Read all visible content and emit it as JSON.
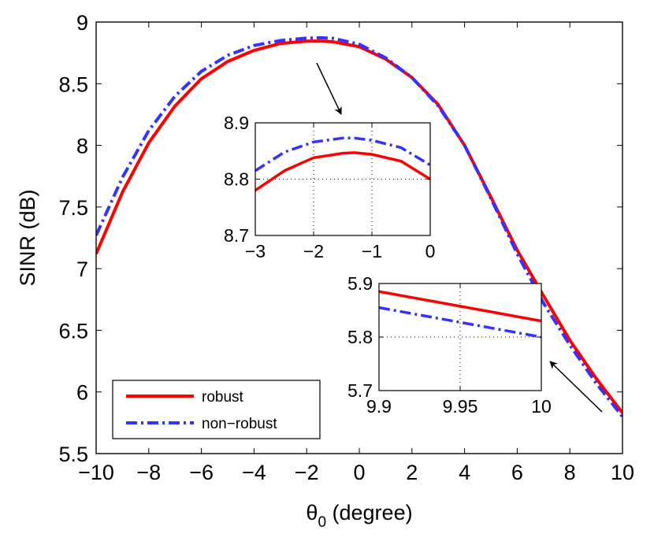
{
  "chart_data": {
    "type": "line",
    "xlabel_symbol": "θ",
    "xlabel_subscript": "0",
    "xlabel_rest": " (degree)",
    "ylabel": "SINR (dB)",
    "xlim": [
      -10,
      10
    ],
    "ylim": [
      5.5,
      9
    ],
    "xticks": [
      -10,
      -8,
      -6,
      -4,
      -2,
      0,
      2,
      4,
      6,
      8,
      10
    ],
    "xtick_labels": [
      "−10",
      "−8",
      "−6",
      "−4",
      "−2",
      "0",
      "2",
      "4",
      "6",
      "8",
      "10"
    ],
    "yticks": [
      5.5,
      6,
      6.5,
      7,
      7.5,
      8,
      8.5,
      9
    ],
    "ytick_labels": [
      "5.5",
      "6",
      "6.5",
      "7",
      "7.5",
      "8",
      "8.5",
      "9"
    ],
    "series": [
      {
        "name": "robust",
        "color": "#ff0000",
        "style": "solid",
        "x": [
          -10,
          -9,
          -8,
          -7,
          -6,
          -5,
          -4,
          -3,
          -2,
          -1.5,
          -1,
          0,
          1,
          2,
          3,
          4,
          5,
          6,
          7,
          8,
          9,
          10
        ],
        "y": [
          7.12,
          7.62,
          8.02,
          8.32,
          8.54,
          8.68,
          8.77,
          8.826,
          8.845,
          8.846,
          8.84,
          8.8,
          8.7,
          8.55,
          8.33,
          8.0,
          7.58,
          7.15,
          6.78,
          6.42,
          6.11,
          5.83
        ]
      },
      {
        "name": "non−robust",
        "color": "#3333ff",
        "style": "dashdot",
        "x": [
          -10,
          -9,
          -8,
          -7,
          -6,
          -5,
          -4,
          -3,
          -2,
          -1.5,
          -1,
          0,
          1,
          2,
          3,
          4,
          5,
          6,
          7,
          8,
          9,
          10
        ],
        "y": [
          7.27,
          7.74,
          8.12,
          8.4,
          8.6,
          8.73,
          8.81,
          8.85,
          8.87,
          8.873,
          8.868,
          8.82,
          8.71,
          8.55,
          8.32,
          8.0,
          7.57,
          7.12,
          6.72,
          6.38,
          6.07,
          5.8
        ]
      }
    ],
    "legend": {
      "position": "bottom-left",
      "entries": [
        "robust",
        "non−robust"
      ]
    },
    "insets": [
      {
        "name": "inset-upper",
        "xlim": [
          -3,
          0
        ],
        "ylim": [
          8.7,
          8.9
        ],
        "xticks": [
          -3,
          -2,
          -1,
          0
        ],
        "xtick_labels": [
          "−3",
          "−2",
          "−1",
          "0"
        ],
        "yticks": [
          8.7,
          8.8,
          8.9
        ],
        "ytick_labels": [
          "8.7",
          "8.8",
          "8.9"
        ],
        "grid_x": [
          -2,
          -1
        ],
        "grid_y": [
          8.8
        ],
        "series": [
          {
            "name": "robust",
            "x": [
              -3,
              -2.5,
              -2,
              -1.5,
              -1.3,
              -1,
              -0.5,
              0
            ],
            "y": [
              8.78,
              8.815,
              8.838,
              8.846,
              8.847,
              8.844,
              8.832,
              8.8
            ]
          },
          {
            "name": "non−robust",
            "x": [
              -3,
              -2.5,
              -2,
              -1.5,
              -1.3,
              -1,
              -0.5,
              0
            ],
            "y": [
              8.815,
              8.848,
              8.866,
              8.873,
              8.873,
              8.869,
              8.856,
              8.825
            ]
          }
        ]
      },
      {
        "name": "inset-lower",
        "xlim": [
          9.9,
          10
        ],
        "ylim": [
          5.7,
          5.9
        ],
        "xticks": [
          9.9,
          9.95,
          10
        ],
        "xtick_labels": [
          "9.9",
          "9.95",
          "10"
        ],
        "yticks": [
          5.7,
          5.8,
          5.9
        ],
        "ytick_labels": [
          "5.7",
          "5.8",
          "5.9"
        ],
        "grid_x": [
          9.95
        ],
        "grid_y": [
          5.8
        ],
        "series": [
          {
            "name": "robust",
            "x": [
              9.9,
              10
            ],
            "y": [
              5.885,
              5.83
            ]
          },
          {
            "name": "non−robust",
            "x": [
              9.9,
              10
            ],
            "y": [
              5.855,
              5.8
            ]
          }
        ]
      }
    ]
  }
}
